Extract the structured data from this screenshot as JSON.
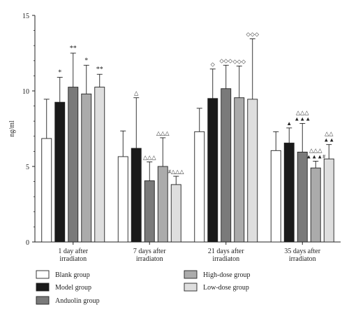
{
  "chart_data": {
    "type": "bar",
    "ylabel": "ng/ml",
    "ylim": [
      0,
      15
    ],
    "yticks": [
      "0",
      "5",
      "10",
      "15"
    ],
    "categories": [
      [
        "1 day after",
        "irradiaton"
      ],
      [
        "7 days after",
        "irradiaton"
      ],
      [
        "21 days after",
        "irradiaton"
      ],
      [
        "35 days after",
        "irradiaton"
      ]
    ],
    "series": [
      {
        "name": "Blank group",
        "color": "#ffffff",
        "values": [
          6.85,
          5.65,
          7.3,
          6.05
        ],
        "errors": [
          2.6,
          1.7,
          1.55,
          1.25
        ],
        "annotations": [
          "",
          "",
          "",
          ""
        ]
      },
      {
        "name": "Model group",
        "color": "#1a1a1a",
        "values": [
          9.25,
          6.2,
          9.5,
          6.55
        ],
        "errors": [
          1.65,
          3.35,
          1.95,
          1.0
        ],
        "annotations": [
          "*",
          "△",
          "◇",
          "▲"
        ]
      },
      {
        "name": "Anduolin group",
        "color": "#7a7a7a",
        "values": [
          10.25,
          4.05,
          10.15,
          5.95
        ],
        "errors": [
          2.25,
          1.25,
          1.55,
          1.9
        ],
        "annotations": [
          "**",
          "△△△",
          "◇◇◇",
          "△△△|▲▲▲"
        ]
      },
      {
        "name": "High-dose group",
        "color": "#ababab",
        "values": [
          9.8,
          5.0,
          9.55,
          4.9
        ],
        "errors": [
          1.9,
          1.9,
          2.1,
          0.45
        ],
        "annotations": [
          "*",
          "△△△",
          "◇◇◇",
          "△△△|▲▲▲#"
        ]
      },
      {
        "name": "Low-dose group",
        "color": "#dedede",
        "values": [
          10.25,
          3.8,
          9.45,
          5.5
        ],
        "errors": [
          0.85,
          0.55,
          4.0,
          0.95
        ],
        "annotations": [
          "**",
          "#△△△",
          "◇◇◇",
          "△△|▲▲"
        ]
      }
    ],
    "grid": false,
    "legend_position": "bottom"
  }
}
